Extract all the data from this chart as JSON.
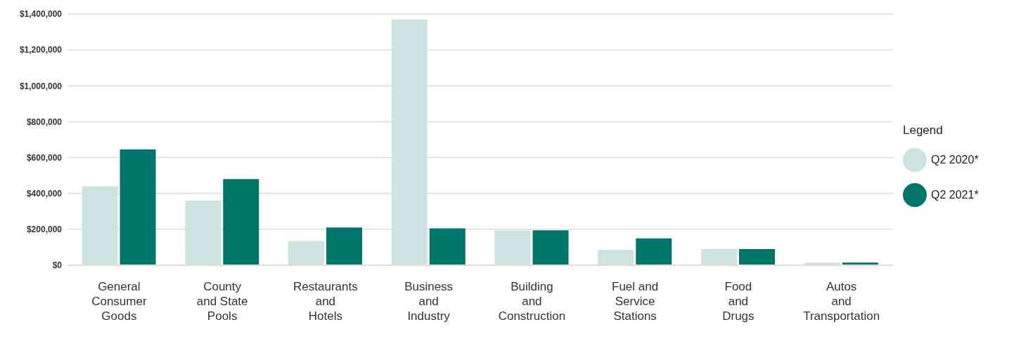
{
  "chart_data": {
    "type": "bar",
    "categories": [
      "General\nConsumer\nGoods",
      "County\nand State\nPools",
      "Restaurants\nand\nHotels",
      "Business\nand\nIndustry",
      "Building\nand\nConstruction",
      "Fuel and\nService\nStations",
      "Food\nand\nDrugs",
      "Autos\nand\nTransportation"
    ],
    "series": [
      {
        "name": "Q2 2020*",
        "color": "#cce3e0",
        "values": [
          440000,
          360000,
          135000,
          1370000,
          195000,
          85000,
          90000,
          15000
        ]
      },
      {
        "name": "Q2 2021*",
        "color": "#00756a",
        "values": [
          645000,
          480000,
          210000,
          205000,
          195000,
          150000,
          90000,
          15000
        ]
      }
    ],
    "ylim": [
      0,
      1400000
    ],
    "yticks": [
      {
        "value": 0,
        "label": "$0"
      },
      {
        "value": 200000,
        "label": "$200,000"
      },
      {
        "value": 400000,
        "label": "$400,000"
      },
      {
        "value": 600000,
        "label": "$600,000"
      },
      {
        "value": 800000,
        "label": "$800,000"
      },
      {
        "value": 1000000,
        "label": "$1,000,000"
      },
      {
        "value": 1200000,
        "label": "$1,200,000"
      },
      {
        "value": 1400000,
        "label": "$1,400,000"
      }
    ],
    "grid": "y",
    "legend": "right",
    "legend_title": "Legend"
  }
}
